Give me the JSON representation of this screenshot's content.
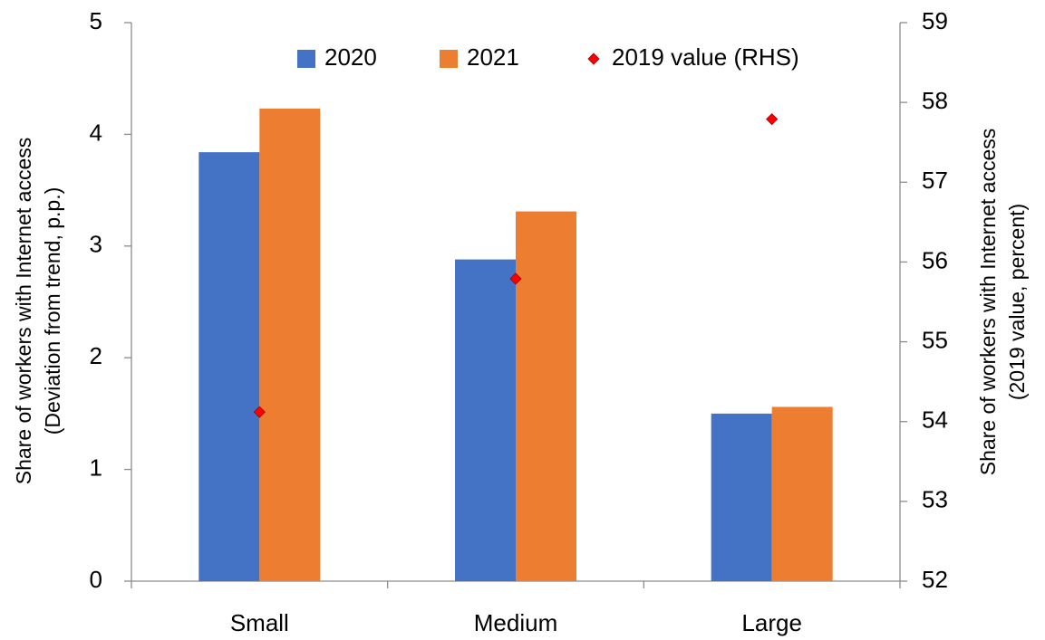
{
  "chart_data": {
    "type": "bar",
    "categories": [
      "Small",
      "Medium",
      "Large"
    ],
    "series": [
      {
        "name": "2020",
        "type": "bar",
        "color": "#4472c4",
        "values": [
          3.84,
          2.88,
          1.5
        ]
      },
      {
        "name": "2021",
        "type": "bar",
        "color": "#ed7d31",
        "values": [
          4.23,
          3.31,
          1.56
        ]
      },
      {
        "name": "2019 value (RHS)",
        "type": "scatter",
        "axis": "y2",
        "color": "#ff0000",
        "values": [
          54.12,
          55.79,
          57.79
        ]
      }
    ],
    "ylabel": [
      "Share of workers with Internet access",
      "(Deviation from trend, p.p.)"
    ],
    "y2label": [
      "Share of workers with Internet access",
      "(2019 value, percent)"
    ],
    "ylim": [
      0,
      5
    ],
    "yticks": [
      0,
      1,
      2,
      3,
      4,
      5
    ],
    "y2lim": [
      52,
      59
    ],
    "y2ticks": [
      52,
      53,
      54,
      55,
      56,
      57,
      58,
      59
    ],
    "grid": false,
    "legend": "top"
  }
}
